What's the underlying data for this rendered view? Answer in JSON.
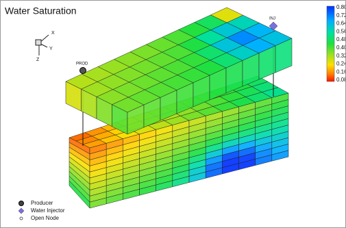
{
  "title": "Water Saturation",
  "colorbar": {
    "labels": [
      "0.80",
      "0.72",
      "0.64",
      "0.56",
      "0.48",
      "0.40",
      "0.32",
      "0.24",
      "0.16",
      "0.08"
    ]
  },
  "axes": {
    "x": "X",
    "y": "Y",
    "z": "Z"
  },
  "wells": [
    {
      "label": "PROD"
    },
    {
      "label": "INJ"
    }
  ],
  "legend": [
    {
      "label": "Producer"
    },
    {
      "label": "Water Injector"
    },
    {
      "label": "Open Node"
    }
  ]
}
